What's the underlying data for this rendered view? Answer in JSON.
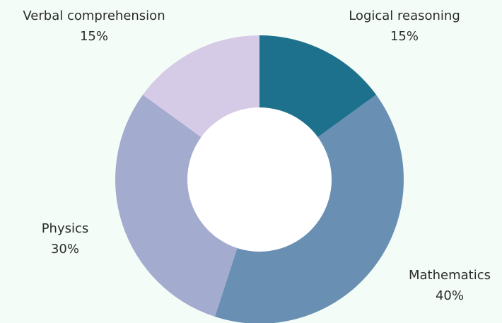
{
  "chart_data": {
    "type": "pie",
    "variant": "donut",
    "slices": [
      {
        "label": "Logical reasoning",
        "value": 15,
        "value_label": "15%",
        "color": "#1e718c"
      },
      {
        "label": "Mathematics",
        "value": 40,
        "value_label": "40%",
        "color": "#6990b3"
      },
      {
        "label": "Physics",
        "value": 30,
        "value_label": "30%",
        "color": "#a3abcf"
      },
      {
        "label": "Verbal comprehension",
        "value": 15,
        "value_label": "15%",
        "color": "#d5cbe6"
      }
    ],
    "start_angle_deg": 0,
    "direction": "clockwise",
    "legend": "none"
  },
  "colors": {
    "background": "#f3fcf7",
    "hole": "#ffffff",
    "label_text": "#2b2b2b"
  }
}
